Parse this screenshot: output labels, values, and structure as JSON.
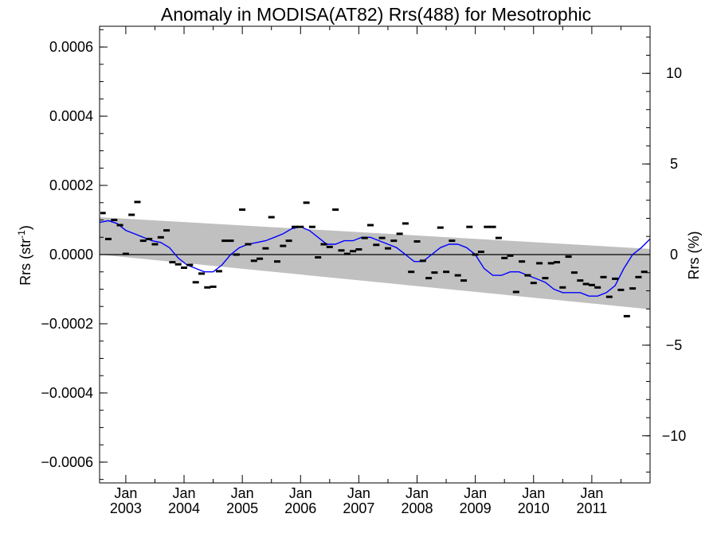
{
  "chart_data": {
    "type": "scatter",
    "title": "Anomaly in MODISA(AT82) Rrs(488) for Mesotrophic",
    "ylabel_left": "Rrs (str",
    "ylabel_left_sup": "-1",
    "ylabel_left_close": ")",
    "ylabel_right": "Rrs (%)",
    "xlim": [
      2002.55,
      2012.0
    ],
    "ylim": [
      -0.00066,
      0.00066
    ],
    "ylim_right": [
      -12.6,
      12.6
    ],
    "grid": false,
    "colors": {
      "running_mean": "#0000ff",
      "points": "#000000",
      "band": "#c0c0c0",
      "zero_line": "#000000"
    },
    "y_ticks_left": [
      {
        "value": 0.0006,
        "label": "0.0006"
      },
      {
        "value": 0.0004,
        "label": "0.0004"
      },
      {
        "value": 0.0002,
        "label": "0.0002"
      },
      {
        "value": 0.0,
        "label": "0.0000"
      },
      {
        "value": -0.0002,
        "label": "−0.0002"
      },
      {
        "value": -0.0004,
        "label": "−0.0004"
      },
      {
        "value": -0.0006,
        "label": "−0.0006"
      }
    ],
    "y_ticks_right": [
      {
        "value": 10,
        "label": "10"
      },
      {
        "value": 5,
        "label": "5"
      },
      {
        "value": 0,
        "label": "0"
      },
      {
        "value": -5,
        "label": "−5"
      },
      {
        "value": -10,
        "label": "−10"
      }
    ],
    "x_ticks": [
      {
        "value": 2003.0,
        "month": "Jan",
        "year": "2003"
      },
      {
        "value": 2004.0,
        "month": "Jan",
        "year": "2004"
      },
      {
        "value": 2005.0,
        "month": "Jan",
        "year": "2005"
      },
      {
        "value": 2006.0,
        "month": "Jan",
        "year": "2006"
      },
      {
        "value": 2007.0,
        "month": "Jan",
        "year": "2007"
      },
      {
        "value": 2008.0,
        "month": "Jan",
        "year": "2008"
      },
      {
        "value": 2009.0,
        "month": "Jan",
        "year": "2009"
      },
      {
        "value": 2010.0,
        "month": "Jan",
        "year": "2010"
      },
      {
        "value": 2011.0,
        "month": "Jan",
        "year": "2011"
      }
    ],
    "uncertainty_band": {
      "x": [
        2002.55,
        2012.0
      ],
      "upper": [
        0.000108,
        1.65e-05
      ],
      "lower": [
        0.0,
        -0.000158
      ]
    },
    "monthly_points": {
      "x": [
        2002.5,
        2002.6,
        2002.7,
        2002.8,
        2002.9,
        2003.0,
        2003.1,
        2003.2,
        2003.3,
        2003.4,
        2003.5,
        2003.6,
        2003.7,
        2003.8,
        2003.9,
        2004.0,
        2004.1,
        2004.2,
        2004.3,
        2004.4,
        2004.5,
        2004.6,
        2004.7,
        2004.8,
        2004.9,
        2005.0,
        2005.1,
        2005.2,
        2005.3,
        2005.4,
        2005.5,
        2005.6,
        2005.7,
        2005.8,
        2005.9,
        2006.0,
        2006.1,
        2006.2,
        2006.3,
        2006.4,
        2006.5,
        2006.6,
        2006.7,
        2006.8,
        2006.9,
        2007.0,
        2007.1,
        2007.2,
        2007.3,
        2007.4,
        2007.5,
        2007.6,
        2007.7,
        2007.8,
        2007.9,
        2008.0,
        2008.1,
        2008.2,
        2008.3,
        2008.4,
        2008.5,
        2008.6,
        2008.7,
        2008.8,
        2008.9,
        2009.0,
        2009.1,
        2009.2,
        2009.3,
        2009.4,
        2009.5,
        2009.6,
        2009.7,
        2009.8,
        2009.9,
        2010.0,
        2010.1,
        2010.2,
        2010.3,
        2010.4,
        2010.5,
        2010.6,
        2010.7,
        2010.8,
        2010.9,
        2011.0,
        2011.1,
        2011.2,
        2011.3,
        2011.4,
        2011.5,
        2011.6,
        2011.7,
        2011.8,
        2011.9
      ],
      "y": [
        0.00011,
        0.00012,
        4.5e-05,
        0.0001,
        8.5e-05,
        2e-06,
        0.000115,
        0.000152,
        4e-05,
        4.5e-05,
        3e-05,
        5e-05,
        7e-05,
        -2.2e-05,
        -2.8e-05,
        -3.8e-05,
        -3e-05,
        -8e-05,
        -5.5e-05,
        -9.5e-05,
        -9.3e-05,
        -4.8e-05,
        4e-05,
        4e-05,
        0.0,
        0.00013,
        3e-05,
        -1.8e-05,
        -1.2e-05,
        1.8e-05,
        0.000108,
        -2e-05,
        2.5e-05,
        4e-05,
        8e-05,
        8e-05,
        0.00015,
        8e-05,
        -8e-06,
        3e-05,
        2.2e-05,
        0.00013,
        1.2e-05,
        2e-06,
        1e-05,
        1.5e-05,
        4.8e-05,
        8.5e-05,
        2.8e-05,
        4.8e-05,
        1.8e-05,
        4e-05,
        6e-05,
        9e-05,
        -5e-05,
        3.8e-05,
        -1.8e-05,
        -6.8e-05,
        -5.2e-05,
        7.8e-05,
        -5e-05,
        4e-05,
        -6e-05,
        -7.5e-05,
        8e-05,
        0.0,
        8e-06,
        8e-05,
        8e-05,
        4.8e-05,
        -1e-05,
        -3e-06,
        -0.000108,
        -2e-05,
        -6e-05,
        -8.2e-05,
        -2.5e-05,
        -6.8e-05,
        -2.5e-05,
        -2.2e-05,
        -9.5e-05,
        -6e-06,
        -5.2e-05,
        -7.5e-05,
        -8.5e-05,
        -8.8e-05,
        -9.5e-05,
        -6.5e-05,
        -0.000122,
        -7e-05,
        -0.000102,
        -0.000178,
        -9.8e-05,
        -6.5e-05,
        -5e-05
      ],
      "marker": "dash"
    },
    "running_mean": {
      "x": [
        2002.55,
        2002.7,
        2002.85,
        2003.0,
        2003.15,
        2003.3,
        2003.45,
        2003.6,
        2003.75,
        2003.9,
        2004.05,
        2004.2,
        2004.35,
        2004.5,
        2004.65,
        2004.8,
        2004.95,
        2005.1,
        2005.25,
        2005.4,
        2005.55,
        2005.7,
        2005.85,
        2006.0,
        2006.15,
        2006.3,
        2006.45,
        2006.6,
        2006.75,
        2006.9,
        2007.05,
        2007.2,
        2007.35,
        2007.5,
        2007.65,
        2007.8,
        2007.95,
        2008.1,
        2008.25,
        2008.4,
        2008.55,
        2008.7,
        2008.85,
        2009.0,
        2009.15,
        2009.3,
        2009.45,
        2009.6,
        2009.75,
        2009.9,
        2010.05,
        2010.2,
        2010.35,
        2010.5,
        2010.65,
        2010.8,
        2010.95,
        2011.1,
        2011.25,
        2011.4,
        2011.55,
        2011.7,
        2011.85,
        2012.0
      ],
      "y": [
        9.3e-05,
        9.8e-05,
        9e-05,
        7e-05,
        6e-05,
        5e-05,
        4e-05,
        3.5e-05,
        2e-05,
        -1e-05,
        -3e-05,
        -4e-05,
        -5e-05,
        -5e-05,
        -3e-05,
        0.0,
        2e-05,
        3e-05,
        3.5e-05,
        4e-05,
        5e-05,
        6e-05,
        7.5e-05,
        8e-05,
        7e-05,
        5e-05,
        3e-05,
        3e-05,
        4e-05,
        4e-05,
        5e-05,
        5e-05,
        4e-05,
        3e-05,
        2e-05,
        0.0,
        -2e-05,
        -2e-05,
        0.0,
        2e-05,
        3e-05,
        3e-05,
        2e-05,
        0.0,
        -4e-05,
        -6e-05,
        -6e-05,
        -5e-05,
        -5e-05,
        -6e-05,
        -7e-05,
        -8e-05,
        -0.0001,
        -0.00011,
        -0.00011,
        -0.00011,
        -0.00012,
        -0.00012,
        -0.00011,
        -9e-05,
        -4e-05,
        0.0,
        2e-05,
        4.5e-05
      ]
    }
  }
}
